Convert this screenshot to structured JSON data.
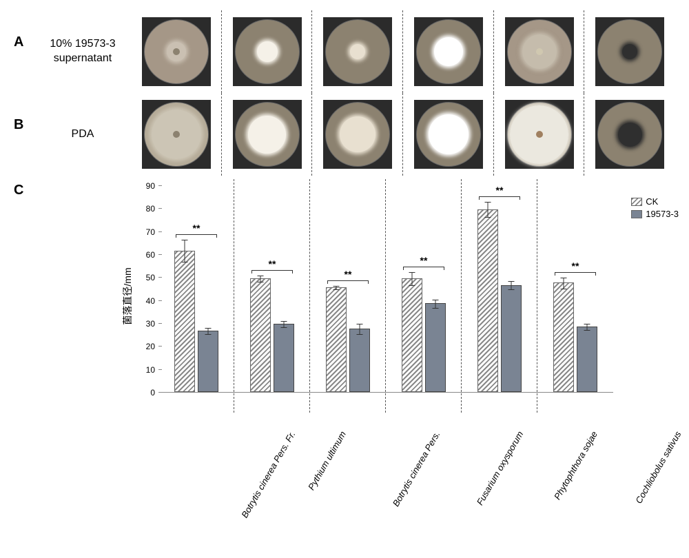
{
  "panels": {
    "A": {
      "label": "A",
      "row_label": "10% 19573-3\nsupernatant"
    },
    "B": {
      "label": "B",
      "row_label": "PDA"
    },
    "C": {
      "label": "C"
    }
  },
  "species": [
    "Botrytis cinerea Pers. Fr.",
    "Pythium ultimum",
    "Botrytis cinerea Pers.",
    "Fusarium oxysporum",
    "Phytophthora sojae",
    "Cochliobolus sativus"
  ],
  "dish_rows": {
    "A": [
      {
        "plate": "#a59787",
        "colony_d": 28,
        "colony_color": "#cac0b2",
        "center": "#8c8270"
      },
      {
        "plate": "#8c8270",
        "colony_d": 30,
        "colony_color": "#f5f1e8"
      },
      {
        "plate": "#8c8270",
        "colony_d": 22,
        "colony_color": "#e8e0d0"
      },
      {
        "plate": "#8c8270",
        "colony_d": 42,
        "colony_color": "#ffffff"
      },
      {
        "plate": "#a59787",
        "colony_d": 50,
        "colony_color": "rgba(230,225,210,0.5)",
        "center": "#d0c8b0"
      },
      {
        "plate": "#8c8270",
        "colony_d": 22,
        "colony_color": "#2f2f2f"
      }
    ],
    "B": [
      {
        "plate": "#b5ab98",
        "colony_d": 72,
        "colony_color": "rgba(220,215,200,0.6)",
        "center": "#8c8270"
      },
      {
        "plate": "#8c8270",
        "colony_d": 55,
        "colony_color": "#f5f1e8"
      },
      {
        "plate": "#8c8270",
        "colony_d": 52,
        "colony_color": "#e8e0d0"
      },
      {
        "plate": "#8c8270",
        "colony_d": 58,
        "colony_color": "#ffffff"
      },
      {
        "plate": "#b5ab98",
        "colony_d": 85,
        "colony_color": "rgba(245,242,235,0.85)",
        "center": "#a08060"
      },
      {
        "plate": "#8c8270",
        "colony_d": 35,
        "colony_color": "#2f2f2f"
      }
    ]
  },
  "chart": {
    "type": "bar",
    "ylabel": "菌落直径/mm",
    "ylim": [
      0,
      90
    ],
    "ytick_step": 10,
    "legend": {
      "ck": {
        "label": "CK",
        "pattern": "hatch"
      },
      "tr": {
        "label": "19573-3",
        "color": "#7a8493"
      }
    },
    "colors": {
      "tr_fill": "#7a8493",
      "axis": "#888888",
      "err": "#333333"
    },
    "groups": [
      {
        "ck": 61,
        "ck_err": 5,
        "tr": 26,
        "tr_err": 1.5,
        "sig": "**"
      },
      {
        "ck": 49,
        "ck_err": 1.5,
        "tr": 29,
        "tr_err": 1.5,
        "sig": "**"
      },
      {
        "ck": 45,
        "ck_err": 1,
        "tr": 27,
        "tr_err": 2.5,
        "sig": "**"
      },
      {
        "ck": 49,
        "ck_err": 3,
        "tr": 38,
        "tr_err": 2,
        "sig": "**"
      },
      {
        "ck": 79,
        "ck_err": 3.5,
        "tr": 46,
        "tr_err": 2,
        "sig": "**"
      },
      {
        "ck": 47,
        "ck_err": 2.5,
        "tr": 28,
        "tr_err": 1.5,
        "sig": "**"
      }
    ]
  }
}
